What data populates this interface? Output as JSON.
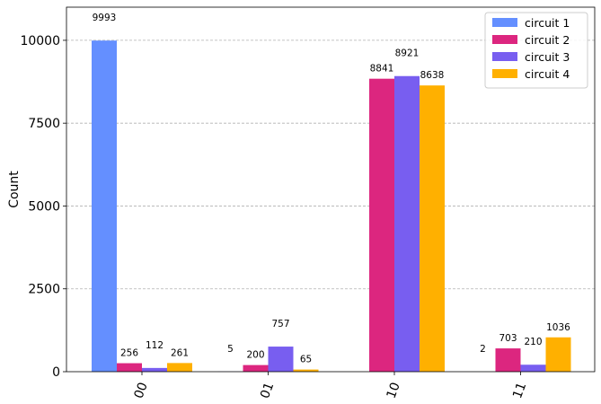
{
  "chart_data": {
    "type": "bar",
    "title": "",
    "xlabel": "",
    "ylabel": "Count",
    "ylim": [
      0,
      11000
    ],
    "yticks": [
      0,
      2500,
      5000,
      7500,
      10000
    ],
    "grid": "horizontal-dashed",
    "legend_position": "top-right",
    "categories": [
      "00",
      "01",
      "10",
      "11"
    ],
    "series": [
      {
        "name": "circuit 1",
        "color": "#648fff",
        "values": [
          9993,
          5,
          0,
          2
        ]
      },
      {
        "name": "circuit 2",
        "color": "#dc267f",
        "values": [
          256,
          200,
          8841,
          703
        ]
      },
      {
        "name": "circuit 3",
        "color": "#785ef0",
        "values": [
          112,
          757,
          8921,
          210
        ]
      },
      {
        "name": "circuit 4",
        "color": "#ffb000",
        "values": [
          261,
          65,
          8638,
          1036
        ]
      }
    ],
    "data_labels": [
      [
        "9993",
        "5",
        "",
        "2"
      ],
      [
        "256",
        "200",
        "8841",
        "703"
      ],
      [
        "112",
        "757",
        "8921",
        "210"
      ],
      [
        "261",
        "65",
        "8638",
        "1036"
      ]
    ]
  }
}
